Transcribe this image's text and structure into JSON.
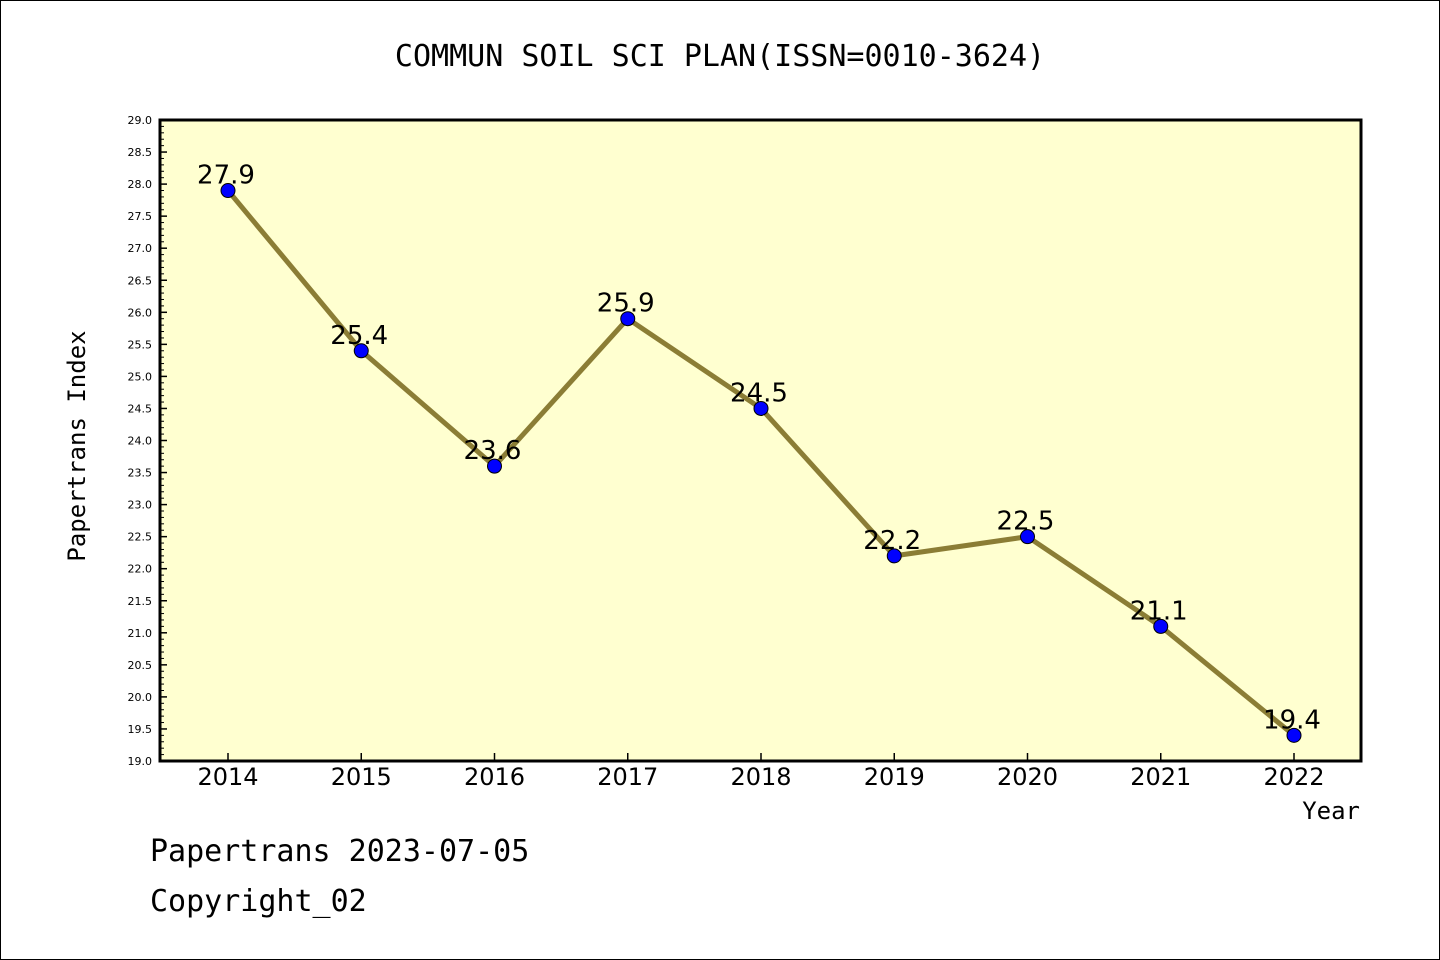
{
  "chart_data": {
    "type": "line",
    "title": "COMMUN SOIL SCI PLAN(ISSN=0010-3624)",
    "xlabel": "Year",
    "ylabel": "Papertrans Index",
    "categories": [
      "2014",
      "2015",
      "2016",
      "2017",
      "2018",
      "2019",
      "2020",
      "2021",
      "2022"
    ],
    "series": [
      {
        "values": [
          27.9,
          25.4,
          23.6,
          25.9,
          24.5,
          22.2,
          22.5,
          21.1,
          19.4
        ],
        "labels": [
          "27.9",
          "25.4",
          "23.6",
          "25.9",
          "24.5",
          "22.2",
          "22.5",
          "21.1",
          "19.4"
        ]
      }
    ],
    "ylim": [
      19.0,
      29.0
    ],
    "ytick_step": 0.5,
    "grid": false,
    "legend": "none",
    "colors": {
      "plot_background": "#ffffd0",
      "line": "#8b7d35",
      "marker": "#0000ff",
      "axis": "#000000"
    }
  },
  "footer": {
    "line1": "Papertrans 2023-07-05",
    "line2": "Copyright_02"
  }
}
